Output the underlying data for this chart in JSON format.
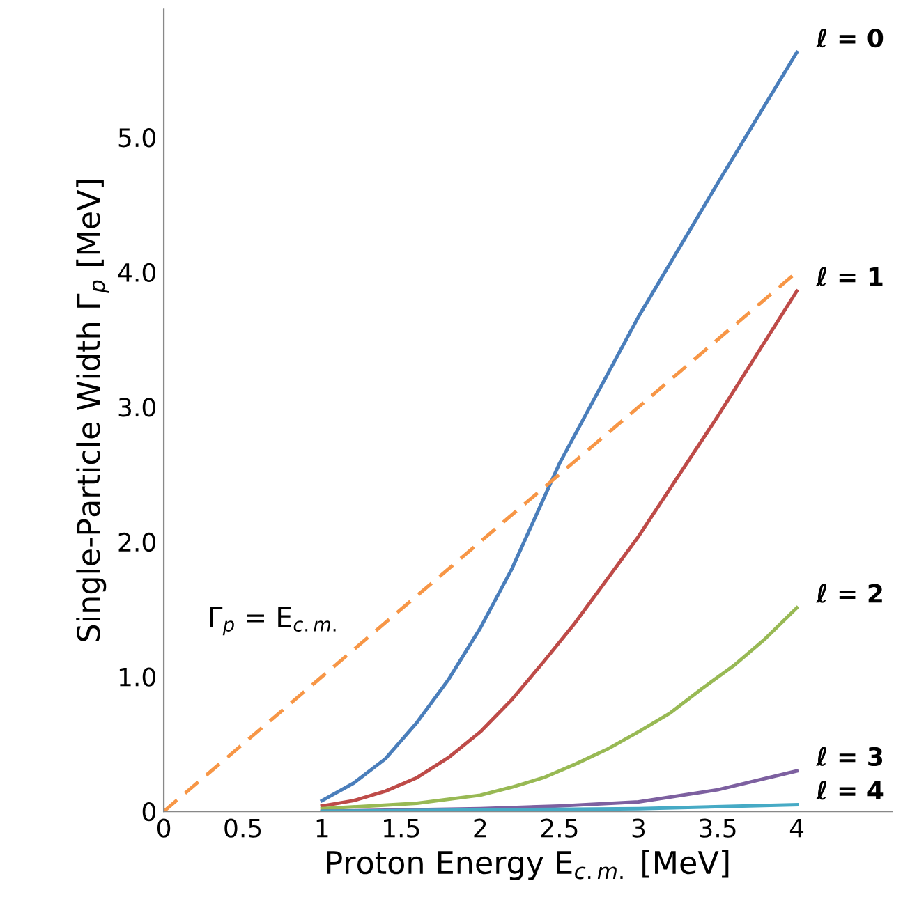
{
  "chart_data": {
    "type": "line",
    "xlabel": "Proton Energy E$_{c.m.}$ [MeV]",
    "ylabel": "Single-Particle Width Γ$_{p}$ [MeV]",
    "xlim": [
      0,
      4.6
    ],
    "ylim": [
      0,
      5.95
    ],
    "xticks": [
      0,
      0.5,
      1,
      1.5,
      2,
      2.5,
      3,
      3.5,
      4
    ],
    "yticks": [
      {
        "value": 0,
        "label": "0"
      },
      {
        "value": 1,
        "label": "1.0"
      },
      {
        "value": 2,
        "label": "2.0"
      },
      {
        "value": 3,
        "label": "3.0"
      },
      {
        "value": 4,
        "label": "4.0"
      },
      {
        "value": 5,
        "label": "5.0"
      }
    ],
    "grid": false,
    "legend": false,
    "marker": "none",
    "series": [
      {
        "name": "ℓ = 0",
        "color": "#4a7ebb",
        "line_style": "solid",
        "x": [
          1,
          1.2,
          1.4,
          1.6,
          1.8,
          2,
          2.2,
          2.5,
          3,
          3.5,
          4
        ],
        "values": [
          0.08,
          0.21,
          0.39,
          0.66,
          0.98,
          1.36,
          1.8,
          2.58,
          3.67,
          4.66,
          5.63
        ]
      },
      {
        "name": "ℓ = 1",
        "color": "#be4b48",
        "line_style": "solid",
        "x": [
          1,
          1.2,
          1.4,
          1.6,
          1.8,
          2,
          2.2,
          2.4,
          2.6,
          3,
          3.5,
          4
        ],
        "values": [
          0.04,
          0.08,
          0.15,
          0.25,
          0.4,
          0.59,
          0.83,
          1.11,
          1.4,
          2.04,
          2.93,
          3.86
        ]
      },
      {
        "name": "ℓ = 2",
        "color": "#98b954",
        "line_style": "solid",
        "x": [
          1,
          1.6,
          2,
          2.2,
          2.4,
          2.6,
          2.8,
          3,
          3.2,
          3.4,
          3.6,
          3.8,
          4
        ],
        "values": [
          0.02,
          0.06,
          0.12,
          0.18,
          0.25,
          0.35,
          0.46,
          0.59,
          0.73,
          0.91,
          1.08,
          1.28,
          1.51
        ]
      },
      {
        "name": "ℓ = 3",
        "color": "#7d60a0",
        "line_style": "solid",
        "x": [
          1,
          2,
          2.5,
          3,
          3.5,
          4
        ],
        "values": [
          0,
          0.02,
          0.04,
          0.07,
          0.16,
          0.3
        ]
      },
      {
        "name": "ℓ = 4",
        "color": "#46aac5",
        "line_style": "solid",
        "x": [
          1,
          2,
          3,
          4
        ],
        "values": [
          0,
          0.01,
          0.02,
          0.05
        ]
      },
      {
        "color": "#f79646",
        "line_style": "dashed",
        "x": [
          0,
          4
        ],
        "values": [
          0,
          4
        ]
      }
    ],
    "annotations": [
      "Γ$_{p}$ = E$_{c.m.}$"
    ]
  }
}
